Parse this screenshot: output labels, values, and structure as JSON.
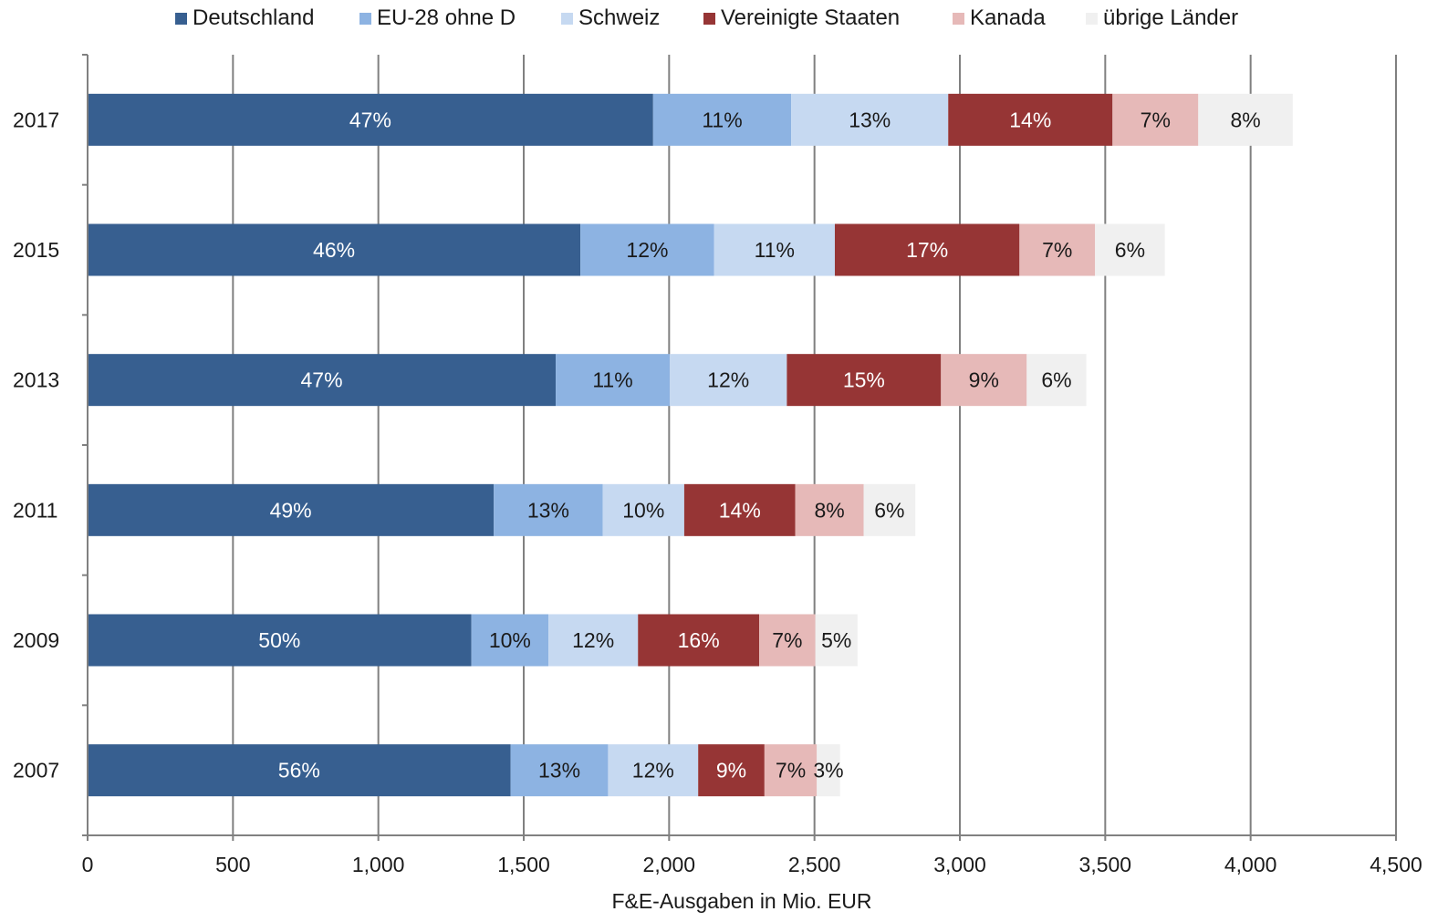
{
  "chart_data": {
    "type": "bar",
    "orientation": "horizontal",
    "stacked": true,
    "title": "",
    "xlabel": "F&E-Ausgaben in Mio. EUR",
    "ylabel": "",
    "xlim": [
      0,
      4500
    ],
    "x_ticks": [
      0,
      500,
      1000,
      1500,
      2000,
      2500,
      3000,
      3500,
      4000,
      4500
    ],
    "x_tick_labels": [
      "0",
      "500",
      "1,000",
      "1,500",
      "2,000",
      "2,500",
      "3,000",
      "3,500",
      "4,000",
      "4,500"
    ],
    "grid": "vertical",
    "legend_position": "top",
    "categories": [
      "2017",
      "2015",
      "2013",
      "2011",
      "2009",
      "2007"
    ],
    "series": [
      {
        "name": "Deutschland",
        "color": "#375f90",
        "label_color": "#ffffff",
        "values": [
          1945,
          1695,
          1610,
          1397,
          1320,
          1455
        ],
        "labels": [
          "47%",
          "46%",
          "47%",
          "49%",
          "50%",
          "56%"
        ]
      },
      {
        "name": "EU-28 ohne D",
        "color": "#8db3e2",
        "label_color": "#1a1a1a",
        "values": [
          475,
          460,
          392,
          375,
          265,
          335
        ],
        "labels": [
          "11%",
          "12%",
          "11%",
          "13%",
          "10%",
          "13%"
        ]
      },
      {
        "name": "Schweiz",
        "color": "#c6d9f1",
        "label_color": "#1a1a1a",
        "values": [
          540,
          415,
          403,
          280,
          308,
          310
        ],
        "labels": [
          "13%",
          "11%",
          "12%",
          "10%",
          "12%",
          "12%"
        ]
      },
      {
        "name": "Vereinigte Staaten",
        "color": "#963535",
        "label_color": "#ffffff",
        "values": [
          565,
          635,
          530,
          382,
          417,
          228
        ],
        "labels": [
          "14%",
          "17%",
          "15%",
          "14%",
          "16%",
          "9%"
        ]
      },
      {
        "name": "Kanada",
        "color": "#e6b9b8",
        "label_color": "#1a1a1a",
        "values": [
          295,
          260,
          295,
          235,
          193,
          180
        ],
        "labels": [
          "7%",
          "7%",
          "9%",
          "8%",
          "7%",
          "7%"
        ]
      },
      {
        "name": "übrige Länder",
        "color": "#f0f0f0",
        "label_color": "#1a1a1a",
        "values": [
          325,
          240,
          205,
          178,
          145,
          80
        ],
        "labels": [
          "8%",
          "6%",
          "6%",
          "6%",
          "5%",
          "3%"
        ]
      }
    ]
  }
}
